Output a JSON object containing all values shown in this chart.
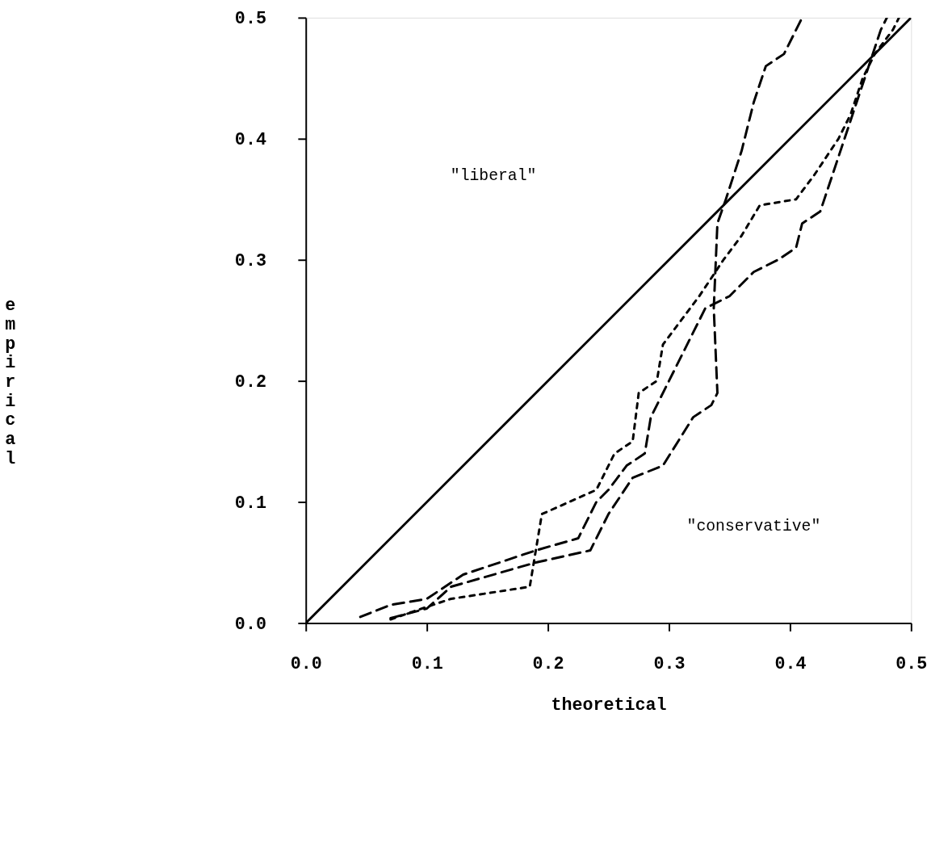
{
  "chart_data": {
    "type": "line",
    "xlabel": "theoretical",
    "ylabel": "empirical",
    "xlim": [
      0,
      0.5
    ],
    "ylim": [
      0,
      0.5
    ],
    "xticks": [
      {
        "value": 0,
        "label": "0.0"
      },
      {
        "value": 0.1,
        "label": "0.1"
      },
      {
        "value": 0.2,
        "label": "0.2"
      },
      {
        "value": 0.3,
        "label": "0.3"
      },
      {
        "value": 0.4,
        "label": "0.4"
      },
      {
        "value": 0.5,
        "label": "0.5"
      }
    ],
    "yticks": [
      {
        "value": 0,
        "label": "0.0"
      },
      {
        "value": 0.1,
        "label": "0.1"
      },
      {
        "value": 0.2,
        "label": "0.2"
      },
      {
        "value": 0.3,
        "label": "0.3"
      },
      {
        "value": 0.4,
        "label": "0.4"
      },
      {
        "value": 0.5,
        "label": "0.5"
      }
    ],
    "grid": false,
    "marker": "none",
    "annotations": [
      "\"liberal\"",
      "\"conservative\""
    ],
    "series": [
      {
        "color": "#000000",
        "line_style": "solid",
        "x": [
          0,
          0.5
        ],
        "values": [
          0,
          0.5
        ]
      },
      {
        "color": "#000000",
        "line_style": "dashed",
        "x": [
          0.07,
          0.1,
          0.12,
          0.19,
          0.235,
          0.25,
          0.27,
          0.295,
          0.32,
          0.335,
          0.34,
          0.337,
          0.34,
          0.347,
          0.36,
          0.37,
          0.38,
          0.395,
          0.405,
          0.41
        ],
        "values": [
          0.004,
          0.012,
          0.03,
          0.05,
          0.06,
          0.09,
          0.12,
          0.13,
          0.17,
          0.18,
          0.19,
          0.26,
          0.33,
          0.35,
          0.39,
          0.43,
          0.46,
          0.47,
          0.49,
          0.5
        ]
      },
      {
        "color": "#000000",
        "line_style": "dashed",
        "x": [
          0.045,
          0.07,
          0.1,
          0.13,
          0.19,
          0.225,
          0.24,
          0.25,
          0.265,
          0.28,
          0.285,
          0.3,
          0.31,
          0.32,
          0.33,
          0.35,
          0.37,
          0.39,
          0.405,
          0.41,
          0.425,
          0.435,
          0.445,
          0.455,
          0.465,
          0.475,
          0.48
        ],
        "values": [
          0.005,
          0.015,
          0.02,
          0.04,
          0.06,
          0.07,
          0.1,
          0.11,
          0.13,
          0.14,
          0.17,
          0.2,
          0.22,
          0.24,
          0.26,
          0.27,
          0.29,
          0.3,
          0.31,
          0.33,
          0.34,
          0.37,
          0.4,
          0.43,
          0.46,
          0.49,
          0.5
        ]
      },
      {
        "color": "#000000",
        "line_style": "dotted",
        "x": [
          0.07,
          0.09,
          0.12,
          0.185,
          0.195,
          0.24,
          0.255,
          0.27,
          0.275,
          0.29,
          0.295,
          0.31,
          0.325,
          0.345,
          0.36,
          0.375,
          0.405,
          0.42,
          0.44,
          0.45,
          0.46,
          0.47,
          0.485,
          0.49
        ],
        "values": [
          0.003,
          0.01,
          0.02,
          0.03,
          0.09,
          0.11,
          0.14,
          0.15,
          0.19,
          0.2,
          0.23,
          0.25,
          0.27,
          0.3,
          0.32,
          0.345,
          0.35,
          0.37,
          0.4,
          0.42,
          0.45,
          0.47,
          0.49,
          0.5
        ]
      }
    ]
  }
}
